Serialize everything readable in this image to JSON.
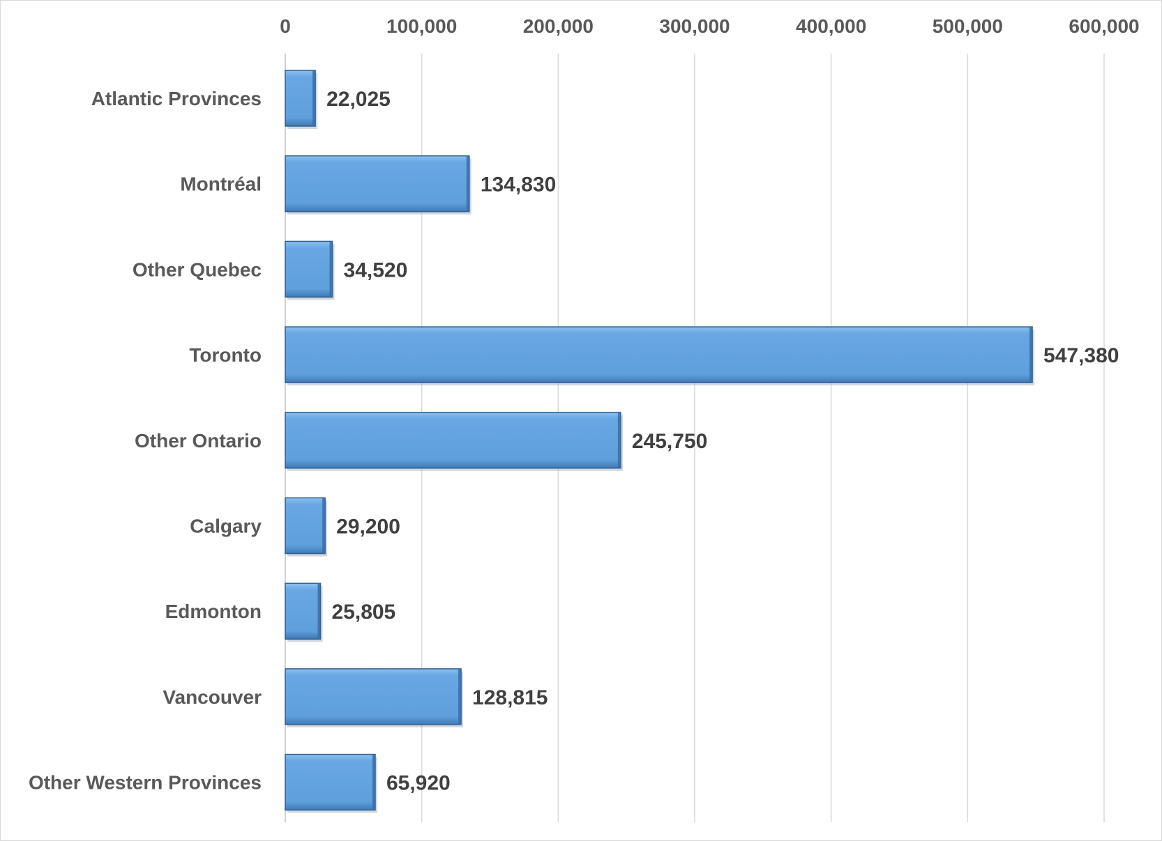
{
  "chart_data": {
    "type": "bar",
    "orientation": "horizontal",
    "categories": [
      "Atlantic Provinces",
      "Montréal",
      "Other Quebec",
      "Toronto",
      "Other Ontario",
      "Calgary",
      "Edmonton",
      "Vancouver",
      "Other Western Provinces"
    ],
    "values": [
      22025,
      134830,
      34520,
      547380,
      245750,
      29200,
      25805,
      128815,
      65920
    ],
    "data_labels": [
      "22,025",
      "134,830",
      "34,520",
      "547,380",
      "245,750",
      "29,200",
      "25,805",
      "128,815",
      "65,920"
    ],
    "x_ticks": [
      0,
      100000,
      200000,
      300000,
      400000,
      500000,
      600000
    ],
    "x_tick_labels": [
      "0",
      "100,000",
      "200,000",
      "300,000",
      "400,000",
      "500,000",
      "600,000"
    ],
    "xlim": [
      0,
      600000
    ],
    "x_axis_position": "top",
    "grid": true,
    "title": "",
    "xlabel": "",
    "ylabel": "",
    "bar_color": "#62a3e0",
    "bar_edge_color": "#2f5f8f"
  }
}
